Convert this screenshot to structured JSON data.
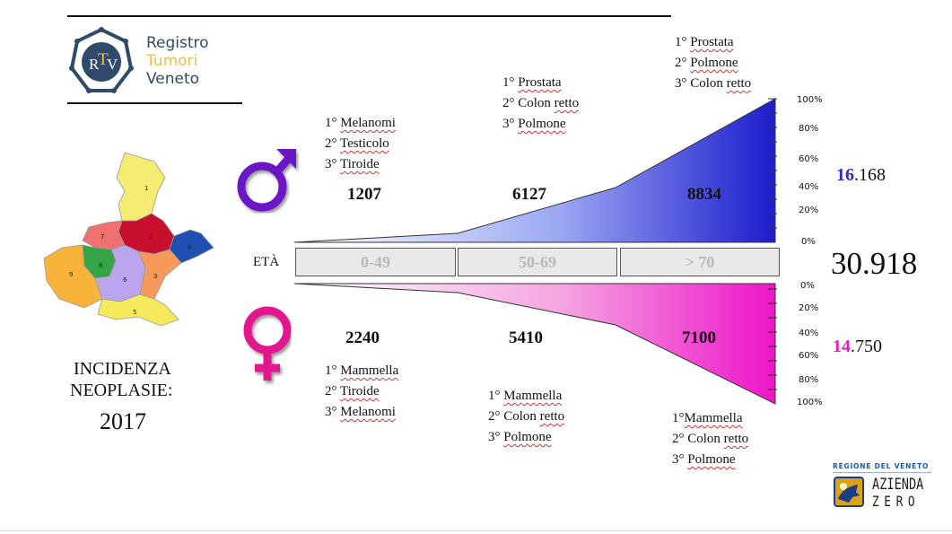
{
  "logo": {
    "monogram_r": "R",
    "monogram_t": "T",
    "monogram_v": "V",
    "line1": "Registro",
    "line2": "Tumori",
    "line3": "Veneto"
  },
  "map": {
    "regions": [
      "1",
      "2",
      "3",
      "4",
      "5",
      "6",
      "7",
      "8",
      "9"
    ]
  },
  "title": {
    "line1": "INCIDENZA",
    "line2": "NEOPLASIE:",
    "year": "2017"
  },
  "age_label": "ETÀ",
  "age_groups": [
    "0-49",
    "50-69",
    "> 70"
  ],
  "male": {
    "symbol": "♂",
    "color": "#2b2bd1",
    "counts": [
      "1207",
      "6127",
      "8834"
    ],
    "top_cancers": [
      [
        {
          "rank": "1°",
          "name": "Melanomi"
        },
        {
          "rank": "2°",
          "name": "Testicolo"
        },
        {
          "rank": "3°",
          "name": "Tiroide"
        }
      ],
      [
        {
          "rank": "1°",
          "name": "Prostata"
        },
        {
          "rank": "2° Colon",
          "name": "retto"
        },
        {
          "rank": "3°",
          "name": "Polmone"
        }
      ],
      [
        {
          "rank": "1°",
          "name": "Prostata"
        },
        {
          "rank": "2°",
          "name": "Polmone"
        },
        {
          "rank": "3° Colon",
          "name": "retto"
        }
      ]
    ],
    "total_bold": "16",
    "total_rest": ".168",
    "ticks": [
      "100%",
      "80%",
      "60%",
      "40%",
      "20%",
      "0%"
    ]
  },
  "female": {
    "symbol": "♀",
    "color": "#e81ab8",
    "counts": [
      "2240",
      "5410",
      "7100"
    ],
    "top_cancers": [
      [
        {
          "rank": "1°",
          "name": "Mammella"
        },
        {
          "rank": "2°",
          "name": "Tiroide"
        },
        {
          "rank": "3°",
          "name": "Melanomi"
        }
      ],
      [
        {
          "rank": "1°",
          "name": "Mammella"
        },
        {
          "rank": "2° Colon",
          "name": "retto"
        },
        {
          "rank": "3°",
          "name": "Polmone"
        }
      ],
      [
        {
          "rank": "1°",
          "name": "Mammella"
        },
        {
          "rank": "2° Colon",
          "name": "retto"
        },
        {
          "rank": "3°",
          "name": "Polmone"
        }
      ]
    ],
    "total_bold": "14",
    "total_rest": ".750",
    "ticks": [
      "0%",
      "20%",
      "40%",
      "60%",
      "80%",
      "100%"
    ]
  },
  "grand_total": "30.918",
  "footer_logo": {
    "region": "REGIONE DEL VENETO",
    "line1": "AZIENDA",
    "line2": "ZERO"
  }
}
